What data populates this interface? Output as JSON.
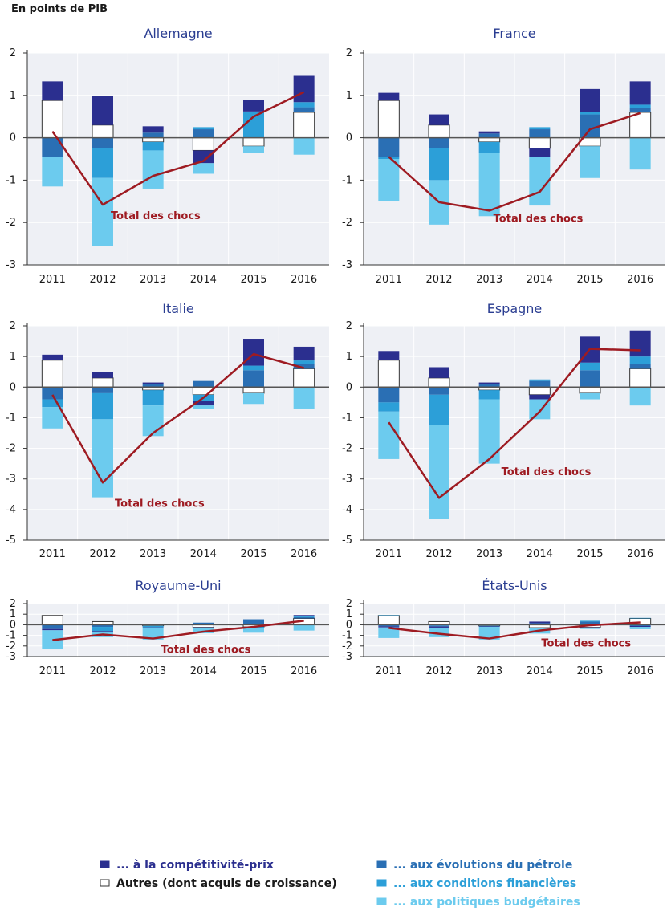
{
  "header": {
    "unit_label": "En points de PIB"
  },
  "colors": {
    "competitivite": "#2b2f8f",
    "autres": "#ffffff",
    "petrole": "#2a6fb4",
    "financieres": "#2c9fd8",
    "budgetaires": "#6ccbee",
    "total": "#9e1b22",
    "panel_bg": "#eef0f5"
  },
  "legend": [
    {
      "key": "competitivite",
      "label": "... à la compétitivité-prix",
      "color": "#2b2f8f",
      "border": "#2b2f8f"
    },
    {
      "key": "autres",
      "label": "Autres (dont acquis de croissance)",
      "color": "#ffffff",
      "border": "#333333"
    },
    {
      "key": "petrole",
      "label": "... aux évolutions du pétrole",
      "color": "#2a6fb4",
      "border": "#2a6fb4"
    },
    {
      "key": "financieres",
      "label": "... aux conditions financières",
      "color": "#2c9fd8",
      "border": "#2c9fd8"
    },
    {
      "key": "budgetaires",
      "label": "... aux politiques budgétaires",
      "color": "#6ccbee",
      "border": "#6ccbee"
    }
  ],
  "chart_data": [
    {
      "type": "bar",
      "title": "Allemagne",
      "categories": [
        "2011",
        "2012",
        "2013",
        "2014",
        "2015",
        "2016"
      ],
      "ylim": [
        -3,
        2
      ],
      "yticks": [
        "2",
        "1",
        "0",
        "-1",
        "-2",
        "-3"
      ],
      "annotation": "Total des chocs",
      "series": [
        {
          "key": "autres",
          "values": [
            0.88,
            0.3,
            -0.1,
            -0.3,
            -0.2,
            0.6
          ]
        },
        {
          "key": "competitivite",
          "values": [
            0.45,
            0.68,
            0.15,
            -0.3,
            0.28,
            0.62
          ]
        },
        {
          "key": "petrole",
          "values": [
            -0.45,
            -0.25,
            0.12,
            0.2,
            0.0,
            0.12
          ]
        },
        {
          "key": "financieres",
          "values": [
            0.0,
            -0.7,
            -0.2,
            0.05,
            0.62,
            0.12
          ]
        },
        {
          "key": "budgetaires",
          "values": [
            -0.7,
            -1.6,
            -0.9,
            -0.25,
            -0.15,
            -0.4
          ]
        }
      ],
      "total": [
        0.15,
        -1.58,
        -0.9,
        -0.55,
        0.5,
        1.08
      ]
    },
    {
      "type": "bar",
      "title": "France",
      "categories": [
        "2011",
        "2012",
        "2013",
        "2014",
        "2015",
        "2016"
      ],
      "ylim": [
        -3,
        2
      ],
      "yticks": [
        "2",
        "1",
        "0",
        "-1",
        "-2",
        "-3"
      ],
      "annotation": "Total des chocs",
      "series": [
        {
          "key": "autres",
          "values": [
            0.88,
            0.3,
            -0.1,
            -0.25,
            -0.2,
            0.6
          ]
        },
        {
          "key": "competitivite",
          "values": [
            0.18,
            0.25,
            0.05,
            -0.2,
            0.55,
            0.55
          ]
        },
        {
          "key": "petrole",
          "values": [
            -0.45,
            -0.25,
            0.1,
            0.2,
            0.55,
            0.1
          ]
        },
        {
          "key": "financieres",
          "values": [
            -0.05,
            -0.75,
            -0.25,
            0.05,
            0.05,
            0.08
          ]
        },
        {
          "key": "budgetaires",
          "values": [
            -1.0,
            -1.05,
            -1.5,
            -1.15,
            -0.75,
            -0.75
          ]
        }
      ],
      "total": [
        -0.45,
        -1.52,
        -1.72,
        -1.28,
        0.2,
        0.58
      ]
    },
    {
      "type": "bar",
      "title": "Italie",
      "categories": [
        "2011",
        "2012",
        "2013",
        "2014",
        "2015",
        "2016"
      ],
      "ylim": [
        -5,
        2
      ],
      "yticks": [
        "2",
        "1",
        "0",
        "-1",
        "-2",
        "-3",
        "-4",
        "-5"
      ],
      "annotation": "Total des chocs",
      "series": [
        {
          "key": "autres",
          "values": [
            0.88,
            0.3,
            -0.1,
            -0.25,
            -0.2,
            0.6
          ]
        },
        {
          "key": "competitivite",
          "values": [
            0.18,
            0.18,
            0.05,
            -0.15,
            0.88,
            0.45
          ]
        },
        {
          "key": "petrole",
          "values": [
            -0.4,
            -0.2,
            0.1,
            0.2,
            0.55,
            0.15
          ]
        },
        {
          "key": "financieres",
          "values": [
            -0.25,
            -0.85,
            -0.5,
            -0.2,
            0.15,
            0.12
          ]
        },
        {
          "key": "budgetaires",
          "values": [
            -0.7,
            -2.55,
            -1.0,
            -0.1,
            -0.35,
            -0.7
          ]
        }
      ],
      "total": [
        -0.25,
        -3.12,
        -1.5,
        -0.35,
        1.08,
        0.62
      ]
    },
    {
      "type": "bar",
      "title": "Espagne",
      "categories": [
        "2011",
        "2012",
        "2013",
        "2014",
        "2015",
        "2016"
      ],
      "ylim": [
        -5,
        2
      ],
      "yticks": [
        "2",
        "1",
        "0",
        "-1",
        "-2",
        "-3",
        "-4",
        "-5"
      ],
      "annotation": "Total des chocs",
      "series": [
        {
          "key": "autres",
          "values": [
            0.88,
            0.3,
            -0.1,
            -0.25,
            -0.2,
            0.6
          ]
        },
        {
          "key": "competitivite",
          "values": [
            0.3,
            0.35,
            0.05,
            -0.15,
            0.85,
            0.85
          ]
        },
        {
          "key": "petrole",
          "values": [
            -0.5,
            -0.25,
            0.1,
            0.2,
            0.55,
            0.15
          ]
        },
        {
          "key": "financieres",
          "values": [
            -0.3,
            -1.0,
            -0.3,
            0.05,
            0.25,
            0.25
          ]
        },
        {
          "key": "budgetaires",
          "values": [
            -1.55,
            -3.05,
            -2.1,
            -0.65,
            -0.2,
            -0.6
          ]
        }
      ],
      "total": [
        -1.15,
        -3.62,
        -2.35,
        -0.8,
        1.25,
        1.2
      ]
    },
    {
      "type": "bar",
      "title": "Royaume-Uni",
      "categories": [
        "2011",
        "2012",
        "2013",
        "2014",
        "2015",
        "2016"
      ],
      "ylim": [
        -3,
        2
      ],
      "yticks": [
        "2",
        "1",
        "0",
        "-1",
        "-2",
        "-3"
      ],
      "annotation": "Total des chocs",
      "series": [
        {
          "key": "autres",
          "values": [
            0.88,
            0.3,
            -0.1,
            -0.25,
            -0.2,
            0.6
          ]
        },
        {
          "key": "competitivite",
          "values": [
            -0.12,
            -0.12,
            -0.05,
            -0.1,
            -0.05,
            0.1
          ]
        },
        {
          "key": "petrole",
          "values": [
            -0.4,
            -0.2,
            0.1,
            0.2,
            0.52,
            0.12
          ]
        },
        {
          "key": "financieres",
          "values": [
            0.0,
            -0.4,
            -0.15,
            0.0,
            -0.1,
            0.1
          ]
        },
        {
          "key": "budgetaires",
          "values": [
            -1.8,
            -0.45,
            -1.1,
            -0.45,
            -0.4,
            -0.55
          ]
        }
      ],
      "total": [
        -1.45,
        -0.92,
        -1.3,
        -0.65,
        -0.2,
        0.38
      ]
    },
    {
      "type": "bar",
      "title": "États-Unis",
      "categories": [
        "2011",
        "2012",
        "2013",
        "2014",
        "2015",
        "2016"
      ],
      "ylim": [
        -3,
        2
      ],
      "yticks": [
        "2",
        "1",
        "0",
        "-1",
        "-2",
        "-3"
      ],
      "annotation": "Total des chocs",
      "series": [
        {
          "key": "autres",
          "values": [
            0.88,
            0.3,
            -0.1,
            -0.28,
            -0.25,
            0.6
          ]
        },
        {
          "key": "competitivite",
          "values": [
            -0.1,
            -0.12,
            -0.05,
            0.15,
            -0.1,
            -0.08
          ]
        },
        {
          "key": "petrole",
          "values": [
            -0.15,
            -0.1,
            0.08,
            0.15,
            0.3,
            -0.12
          ]
        },
        {
          "key": "financieres",
          "values": [
            0.03,
            -0.05,
            -0.05,
            0.0,
            0.08,
            0.05
          ]
        },
        {
          "key": "budgetaires",
          "values": [
            -1.0,
            -0.9,
            -1.2,
            -0.55,
            -0.05,
            -0.22
          ]
        }
      ],
      "total": [
        -0.3,
        -0.85,
        -1.3,
        -0.55,
        -0.05,
        0.22
      ]
    }
  ]
}
